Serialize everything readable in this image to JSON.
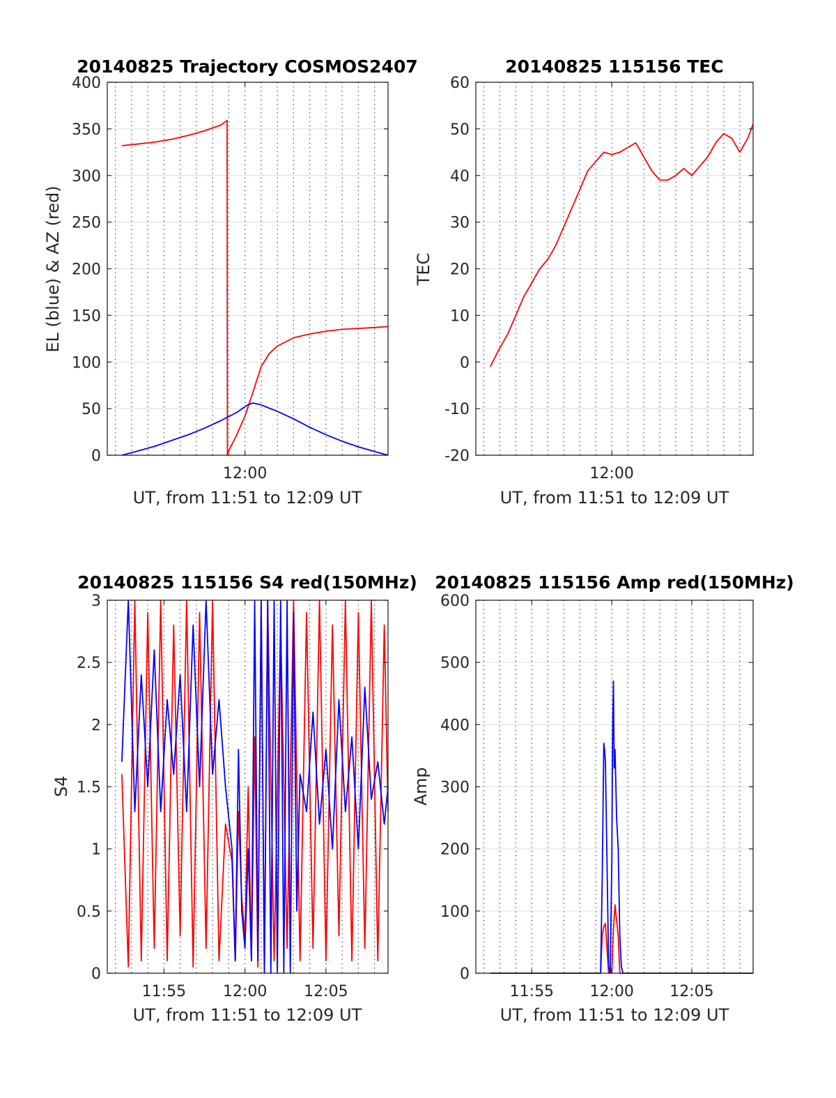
{
  "figure": {
    "background": "#ffffff"
  },
  "chart_data": [
    {
      "type": "line",
      "title": "20140825 Trajectory COSMOS2407",
      "xlabel": "UT, from 11:51 to 12:09 UT",
      "ylabel": "EL (blue) & AZ (red)",
      "xlim": [
        "11:51:30",
        "12:08:50"
      ],
      "ylim": [
        0,
        400
      ],
      "yticks": [
        0,
        50,
        100,
        150,
        200,
        250,
        300,
        350,
        400
      ],
      "xticks": [
        {
          "value": "12:00",
          "label": "12:00"
        }
      ],
      "grid": {
        "x_minor_dotted_every_minutes": 1,
        "y_major": true
      },
      "series": [
        {
          "color": "#ff0000",
          "x": [
            "11:52:24",
            "11:53:30",
            "11:54:30",
            "11:55:30",
            "11:56:30",
            "11:57:30",
            "11:58:30",
            "11:58:54",
            "11:58:55",
            "11:59:00",
            "11:59:30",
            "12:00:00",
            "12:00:30",
            "12:01:00",
            "12:01:30",
            "12:02:00",
            "12:03:00",
            "12:04:00",
            "12:05:00",
            "12:06:00",
            "12:07:00",
            "12:08:00",
            "12:08:50"
          ],
          "values": [
            332,
            334,
            336,
            339,
            343,
            348,
            354,
            359,
            0,
            5,
            22,
            42,
            68,
            95,
            109,
            117,
            126,
            130,
            133,
            135,
            136,
            137,
            138
          ]
        },
        {
          "color": "#0000ff",
          "x": [
            "11:52:24",
            "11:53:30",
            "11:54:30",
            "11:55:30",
            "11:56:30",
            "11:57:30",
            "11:58:30",
            "11:59:30",
            "12:00:10",
            "12:00:30",
            "12:01:00",
            "12:02:00",
            "12:03:00",
            "12:04:00",
            "12:05:00",
            "12:06:00",
            "12:07:00",
            "12:08:00",
            "12:08:50"
          ],
          "values": [
            0,
            5,
            10,
            16,
            22,
            29,
            37,
            46,
            54,
            56,
            54,
            47,
            39,
            30,
            22,
            15,
            9,
            4,
            0
          ]
        }
      ]
    },
    {
      "type": "line",
      "title": "20140825 115156 TEC",
      "xlabel": "UT, from 11:51 to 12:09 UT",
      "ylabel": "TEC",
      "xlim": [
        "11:51:30",
        "12:08:50"
      ],
      "ylim": [
        -20,
        60
      ],
      "yticks": [
        -20,
        -10,
        0,
        10,
        20,
        30,
        40,
        50,
        60
      ],
      "xticks": [
        {
          "value": "12:00",
          "label": "12:00"
        }
      ],
      "grid": {
        "x_minor_dotted_every_minutes": 1,
        "y_major": true
      },
      "series": [
        {
          "color": "#ff0000",
          "x": [
            "11:52:24",
            "11:53:00",
            "11:53:30",
            "11:54:00",
            "11:54:30",
            "11:55:00",
            "11:55:30",
            "11:56:00",
            "11:56:30",
            "11:57:00",
            "11:57:30",
            "11:58:00",
            "11:58:30",
            "11:59:00",
            "11:59:30",
            "12:00:00",
            "12:00:30",
            "12:01:00",
            "12:01:30",
            "12:02:00",
            "12:02:30",
            "12:03:00",
            "12:03:30",
            "12:04:00",
            "12:04:30",
            "12:05:00",
            "12:05:30",
            "12:06:00",
            "12:06:30",
            "12:07:00",
            "12:07:30",
            "12:08:00",
            "12:08:30",
            "12:08:50"
          ],
          "values": [
            -1,
            3,
            6,
            10,
            14,
            17,
            20,
            22,
            25,
            29,
            33,
            37,
            41,
            43,
            45,
            44.5,
            45,
            46,
            47,
            44,
            41,
            39,
            39,
            40,
            41.5,
            40,
            42,
            44,
            47,
            49,
            48,
            45,
            48,
            51
          ]
        }
      ]
    },
    {
      "type": "line",
      "title": "20140825 115156 S4 red(150MHz)",
      "xlabel": "UT, from 11:51 to 12:09 UT",
      "ylabel": "S4",
      "xlim": [
        "11:51:30",
        "12:08:50"
      ],
      "ylim": [
        0,
        3
      ],
      "yticks": [
        0,
        0.5,
        1,
        1.5,
        2,
        2.5,
        3
      ],
      "xticks": [
        {
          "value": "11:55",
          "label": "11:55"
        },
        {
          "value": "12:00",
          "label": "12:00"
        },
        {
          "value": "12:05",
          "label": "12:05"
        }
      ],
      "grid": {
        "x_minor_dotted_every_minutes": 1,
        "y_major": true
      },
      "series": [
        {
          "color": "#ff0000",
          "x": [
            "11:52:24",
            "11:52:48",
            "11:53:12",
            "11:53:36",
            "11:54:00",
            "11:54:24",
            "11:54:48",
            "11:55:12",
            "11:55:36",
            "11:56:00",
            "11:56:24",
            "11:56:48",
            "11:57:12",
            "11:57:36",
            "11:58:00",
            "11:58:24",
            "11:58:48",
            "11:59:12",
            "11:59:24",
            "11:59:36",
            "11:59:48",
            "12:00:00",
            "12:00:12",
            "12:00:24",
            "12:00:36",
            "12:00:48",
            "12:01:00",
            "12:01:12",
            "12:01:24",
            "12:01:48",
            "12:02:12",
            "12:02:36",
            "12:03:00",
            "12:03:24",
            "12:03:48",
            "12:04:12",
            "12:04:36",
            "12:05:00",
            "12:05:24",
            "12:05:48",
            "12:06:12",
            "12:06:36",
            "12:07:00",
            "12:07:24",
            "12:07:48",
            "12:08:12",
            "12:08:36",
            "12:08:50"
          ],
          "values": [
            1.6,
            0.05,
            3,
            0.1,
            2.9,
            0.2,
            3,
            0.1,
            2.8,
            0.3,
            3,
            0.05,
            2.9,
            0.2,
            3,
            0.1,
            1.2,
            0.9,
            0.1,
            1.3,
            0.6,
            0.3,
            1.5,
            0.1,
            1.9,
            0.05,
            3,
            0,
            3,
            0.1,
            2.8,
            0.2,
            3,
            0.1,
            2.9,
            0.2,
            3,
            0.1,
            2.8,
            0.3,
            3,
            0.1,
            2.9,
            0.2,
            3,
            0.1,
            2.8,
            1.3
          ]
        },
        {
          "color": "#0000ff",
          "x": [
            "11:52:24",
            "11:52:48",
            "11:53:12",
            "11:53:36",
            "11:54:00",
            "11:54:24",
            "11:54:48",
            "11:55:12",
            "11:55:36",
            "11:56:00",
            "11:56:24",
            "11:56:48",
            "11:57:12",
            "11:57:36",
            "11:58:00",
            "11:58:24",
            "11:58:48",
            "11:59:12",
            "11:59:24",
            "11:59:36",
            "11:59:48",
            "12:00:00",
            "12:00:12",
            "12:00:24",
            "12:00:36",
            "12:00:48",
            "12:01:00",
            "12:01:12",
            "12:01:24",
            "12:01:36",
            "12:01:48",
            "12:02:00",
            "12:02:12",
            "12:02:24",
            "12:02:36",
            "12:02:48",
            "12:03:00",
            "12:03:12",
            "12:03:24",
            "12:03:48",
            "12:04:12",
            "12:04:36",
            "12:05:00",
            "12:05:24",
            "12:05:48",
            "12:06:12",
            "12:06:36",
            "12:07:00",
            "12:07:24",
            "12:07:48",
            "12:08:12",
            "12:08:36",
            "12:08:50"
          ],
          "values": [
            1.7,
            3,
            1.3,
            2.4,
            1.5,
            2.6,
            1.3,
            2.2,
            1.6,
            2.4,
            1.3,
            2.8,
            1.5,
            3,
            1.6,
            2.2,
            1.5,
            1.0,
            0.1,
            1.8,
            0.5,
            0.2,
            1.0,
            0.1,
            3,
            0.1,
            3,
            0,
            3,
            0,
            3,
            0,
            3,
            0,
            3,
            0,
            2.9,
            0.5,
            1.6,
            1.3,
            2.1,
            1.2,
            1.8,
            1.0,
            2.2,
            1.3,
            1.9,
            1.0,
            2.3,
            1.4,
            1.7,
            1.2,
            1.5
          ]
        }
      ]
    },
    {
      "type": "line",
      "title": "20140825 115156 Amp red(150MHz)",
      "xlabel": "UT, from 11:51 to 12:09 UT",
      "ylabel": "Amp",
      "xlim": [
        "11:51:30",
        "12:08:50"
      ],
      "ylim": [
        0,
        600
      ],
      "yticks": [
        0,
        100,
        200,
        300,
        400,
        500,
        600
      ],
      "xticks": [
        {
          "value": "11:55",
          "label": "11:55"
        },
        {
          "value": "12:00",
          "label": "12:00"
        },
        {
          "value": "12:05",
          "label": "12:05"
        }
      ],
      "grid": {
        "x_minor_dotted_every_minutes": 1,
        "y_major": true
      },
      "series": [
        {
          "color": "#ff0000",
          "x": [
            "11:52:24",
            "11:59:18",
            "11:59:24",
            "11:59:30",
            "11:59:36",
            "11:59:42",
            "11:59:48",
            "11:59:54",
            "12:00:00",
            "12:00:06",
            "12:00:12",
            "12:00:18",
            "12:00:24",
            "12:00:30",
            "12:00:36",
            "12:00:42",
            "12:08:50"
          ],
          "values": [
            0,
            0,
            60,
            75,
            80,
            40,
            0,
            10,
            0,
            70,
            110,
            85,
            60,
            0,
            0,
            0,
            0
          ]
        },
        {
          "color": "#0000ff",
          "x": [
            "11:52:24",
            "11:59:18",
            "11:59:24",
            "11:59:30",
            "11:59:33",
            "11:59:36",
            "11:59:42",
            "11:59:48",
            "11:59:54",
            "12:00:00",
            "12:00:03",
            "12:00:06",
            "12:00:09",
            "12:00:12",
            "12:00:15",
            "12:00:18",
            "12:00:24",
            "12:00:30",
            "12:00:36",
            "12:00:42",
            "12:00:48",
            "12:08:50"
          ],
          "values": [
            0,
            0,
            150,
            370,
            360,
            340,
            180,
            10,
            0,
            180,
            380,
            470,
            330,
            360,
            310,
            250,
            200,
            60,
            10,
            0,
            0,
            0
          ]
        }
      ]
    }
  ]
}
